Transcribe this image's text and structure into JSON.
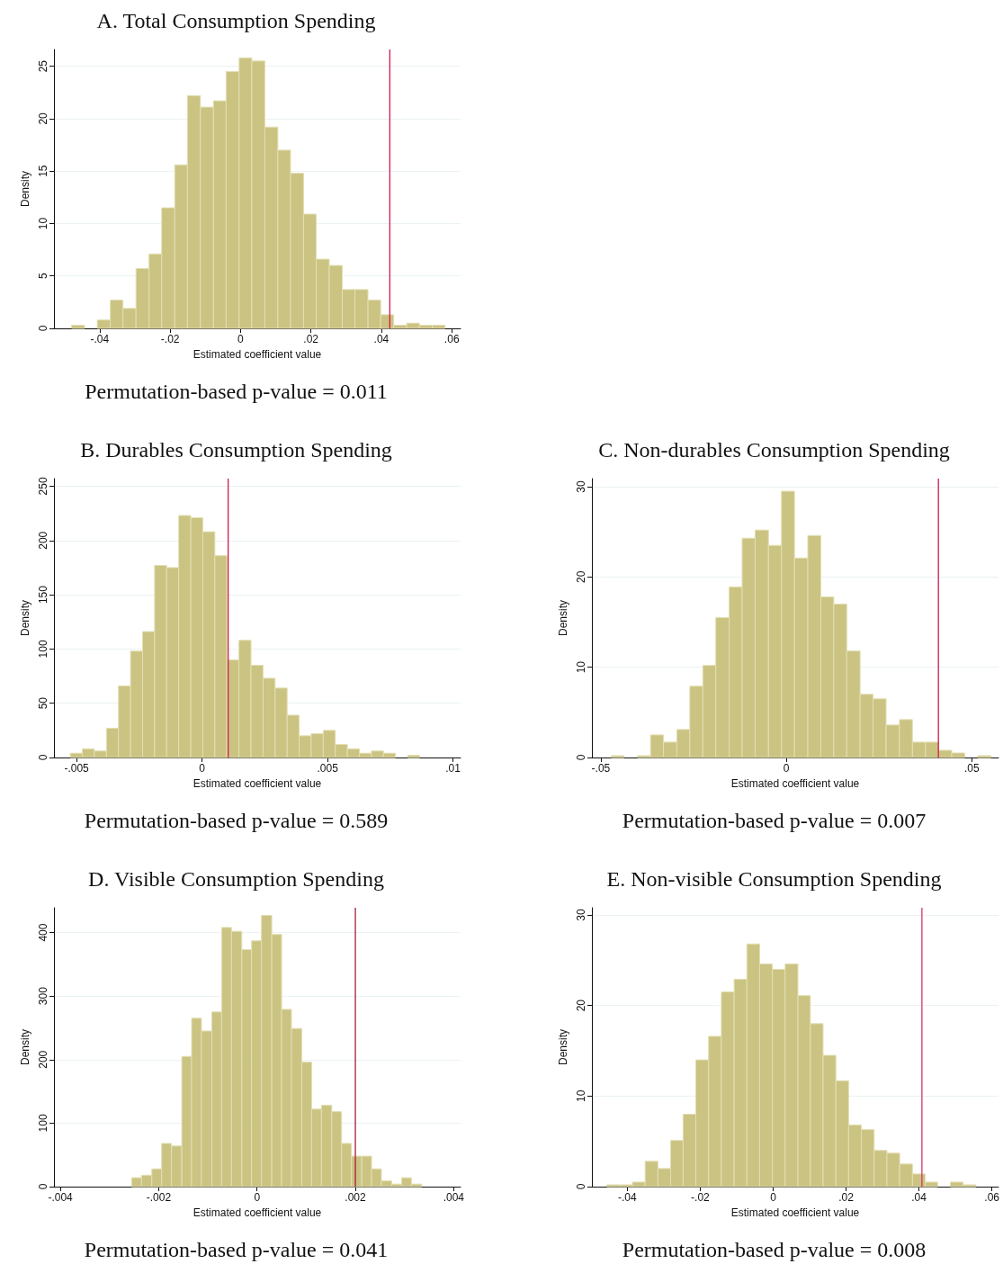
{
  "chart_data": [
    {
      "type": "histogram",
      "title": "A. Total Consumption Spending",
      "xlabel": "Estimated coefficient value",
      "ylabel": "Density",
      "color": "#cbc382",
      "bins": [
        -0.048,
        -0.0443,
        -0.0407,
        -0.037,
        -0.0334,
        -0.0297,
        -0.026,
        -0.0224,
        -0.0187,
        -0.0151,
        -0.0114,
        -0.0077,
        -0.0041,
        -0.0004,
        0.0032,
        0.0069,
        0.0106,
        0.0142,
        0.0179,
        0.0215,
        0.0252,
        0.0289,
        0.0325,
        0.0362,
        0.0398,
        0.0435,
        0.0472,
        0.0508,
        0.0545,
        0.0581
      ],
      "values": [
        0.3,
        0,
        0.8,
        2.7,
        1.9,
        5.7,
        7.1,
        11.5,
        15.6,
        22.2,
        21.1,
        21.7,
        24.5,
        25.8,
        25.5,
        19.2,
        17.0,
        14.8,
        10.9,
        6.6,
        6.0,
        3.7,
        3.7,
        2.7,
        1.3,
        0.3,
        0.5,
        0.3,
        0.3
      ],
      "xlim": [
        -0.053,
        0.0625
      ],
      "xticks": [
        {
          "value": -0.04,
          "label": "-.04"
        },
        {
          "value": -0.02,
          "label": "-.02"
        },
        {
          "value": 0,
          "label": "0"
        },
        {
          "value": 0.02,
          "label": ".02"
        },
        {
          "value": 0.04,
          "label": ".04"
        },
        {
          "value": 0.06,
          "label": ".06"
        }
      ],
      "ylim": [
        0,
        26.6
      ],
      "yticks": [
        0,
        5,
        10,
        15,
        20,
        25
      ],
      "grid": "y",
      "ref_lines": [
        {
          "axis": "x",
          "value": 0.0424,
          "color": "#d11a4a"
        }
      ],
      "annotations": [
        "Permutation-based p-value = 0.011"
      ]
    },
    {
      "type": "histogram",
      "title": "B. Durables Consumption Spending",
      "xlabel": "Estimated coefficient value",
      "ylabel": "Density",
      "color": "#cbc382",
      "bins": [
        -0.00525,
        -0.00477,
        -0.00429,
        -0.00381,
        -0.00333,
        -0.00285,
        -0.00237,
        -0.00189,
        -0.00141,
        -0.00093,
        -0.00045,
        3e-05,
        0.00051,
        0.00099,
        0.00147,
        0.00195,
        0.00243,
        0.00291,
        0.00339,
        0.00387,
        0.00435,
        0.00483,
        0.00531,
        0.00579,
        0.00627,
        0.00675,
        0.00723,
        0.00771,
        0.00819,
        0.00867
      ],
      "values": [
        4,
        8,
        6,
        27,
        66,
        98,
        116,
        177,
        175,
        223,
        221,
        208,
        186,
        90,
        108,
        85,
        73,
        64,
        39,
        20,
        22,
        25,
        12,
        8,
        4,
        6,
        4,
        0,
        2
      ],
      "xlim": [
        -0.0059,
        0.0103
      ],
      "xticks": [
        {
          "value": -0.005,
          "label": "-.005"
        },
        {
          "value": 0,
          "label": "0"
        },
        {
          "value": 0.005,
          "label": ".005"
        },
        {
          "value": 0.01,
          "label": ".01"
        }
      ],
      "ylim": [
        0,
        257
      ],
      "yticks": [
        0,
        50,
        100,
        150,
        200,
        250
      ],
      "grid": "y",
      "ref_lines": [
        {
          "axis": "x",
          "value": 0.00104,
          "color": "#d11a4a"
        }
      ],
      "annotations": [
        "Permutation-based p-value = 0.589"
      ]
    },
    {
      "type": "histogram",
      "title": "C. Non-durables Consumption Spending",
      "xlabel": "Estimated coefficient value",
      "ylabel": "Density",
      "color": "#cbc382",
      "bins": [
        -0.0472,
        -0.0437,
        -0.0401,
        -0.0366,
        -0.0331,
        -0.0295,
        -0.026,
        -0.0225,
        -0.019,
        -0.0154,
        -0.0119,
        -0.0084,
        -0.0048,
        -0.0013,
        0.0022,
        0.0058,
        0.0093,
        0.0128,
        0.0163,
        0.0199,
        0.0234,
        0.0269,
        0.0305,
        0.034,
        0.0375,
        0.0411,
        0.0446,
        0.0481,
        0.0516,
        0.0552
      ],
      "values": [
        0.2,
        0,
        0.2,
        2.5,
        1.7,
        3.1,
        7.9,
        10.2,
        15.5,
        18.9,
        24.3,
        25.2,
        23.5,
        29.5,
        22.1,
        24.6,
        17.8,
        17.0,
        11.8,
        7.0,
        6.5,
        3.6,
        4.2,
        1.7,
        1.7,
        0.8,
        0.5,
        0,
        0.2
      ],
      "xlim": [
        -0.0524,
        0.0572
      ],
      "xticks": [
        {
          "value": -0.05,
          "label": "-.05"
        },
        {
          "value": 0,
          "label": "0"
        },
        {
          "value": 0.05,
          "label": ".05"
        }
      ],
      "ylim": [
        0,
        30.9
      ],
      "yticks": [
        0,
        10,
        20,
        30
      ],
      "grid": "y",
      "ref_lines": [
        {
          "axis": "x",
          "value": 0.041,
          "color": "#d11a4a"
        }
      ],
      "annotations": [
        "Permutation-based p-value = 0.007"
      ]
    },
    {
      "type": "histogram",
      "title": "D. Visible Consumption Spending",
      "xlabel": "Estimated coefficient value",
      "ylabel": "Density",
      "color": "#cbc382",
      "bins": [
        -0.00255,
        -0.00235,
        -0.00214,
        -0.00194,
        -0.00174,
        -0.00153,
        -0.00133,
        -0.00113,
        -0.00092,
        -0.00072,
        -0.00052,
        -0.00031,
        -0.00011,
        9e-05,
        0.0003,
        0.0005,
        0.0007,
        0.00091,
        0.00111,
        0.00131,
        0.00152,
        0.00172,
        0.00192,
        0.00213,
        0.00233,
        0.00253,
        0.00274,
        0.00294,
        0.00314,
        0.00335
      ],
      "values": [
        14,
        18,
        28,
        68,
        64,
        205,
        265,
        245,
        275,
        408,
        402,
        373,
        387,
        427,
        397,
        279,
        249,
        196,
        122,
        128,
        118,
        68,
        48,
        48,
        28,
        9,
        4,
        14,
        4
      ],
      "xlim": [
        -0.00413,
        0.00414
      ],
      "xticks": [
        {
          "value": -0.004,
          "label": "-.004"
        },
        {
          "value": -0.002,
          "label": "-.002"
        },
        {
          "value": 0,
          "label": "0"
        },
        {
          "value": 0.002,
          "label": ".002"
        },
        {
          "value": 0.004,
          "label": ".004"
        }
      ],
      "ylim": [
        0,
        439
      ],
      "yticks": [
        0,
        100,
        200,
        300,
        400
      ],
      "grid": "y",
      "ref_lines": [
        {
          "axis": "x",
          "value": 0.002,
          "color": "#a01c3c"
        }
      ],
      "annotations": [
        "Permutation-based p-value = 0.041"
      ]
    },
    {
      "type": "histogram",
      "title": "E. Non-visible Consumption Spending",
      "xlabel": "Estimated coefficient value",
      "ylabel": "Density",
      "color": "#cbc382",
      "bins": [
        -0.0456,
        -0.0421,
        -0.0386,
        -0.0351,
        -0.0316,
        -0.0281,
        -0.0247,
        -0.0212,
        -0.0177,
        -0.0142,
        -0.0107,
        -0.0072,
        -0.0037,
        -0.0002,
        0.0033,
        0.0068,
        0.0102,
        0.0137,
        0.0172,
        0.0207,
        0.0242,
        0.0277,
        0.0312,
        0.0347,
        0.0382,
        0.0417,
        0.0451,
        0.0486,
        0.0521,
        0.0556
      ],
      "values": [
        0.2,
        0.2,
        0.5,
        2.8,
        2.0,
        5.1,
        8.0,
        14.0,
        16.6,
        21.5,
        22.9,
        26.8,
        24.6,
        24.0,
        24.6,
        21.1,
        18.0,
        14.5,
        11.7,
        6.8,
        6.3,
        4.0,
        3.7,
        2.5,
        1.4,
        0.5,
        0,
        0.5,
        0.2
      ],
      "xlim": [
        -0.0497,
        0.0618
      ],
      "xticks": [
        {
          "value": -0.04,
          "label": "-.04"
        },
        {
          "value": -0.02,
          "label": "-.02"
        },
        {
          "value": 0,
          "label": "0"
        },
        {
          "value": 0.02,
          "label": ".02"
        },
        {
          "value": 0.04,
          "label": ".04"
        },
        {
          "value": 0.06,
          "label": ".06"
        }
      ],
      "ylim": [
        0,
        30.8
      ],
      "yticks": [
        0,
        10,
        20,
        30
      ],
      "grid": "y",
      "ref_lines": [
        {
          "axis": "x",
          "value": 0.0408,
          "color": "#d6336a"
        }
      ],
      "annotations": [
        "Permutation-based p-value = 0.008"
      ]
    }
  ]
}
